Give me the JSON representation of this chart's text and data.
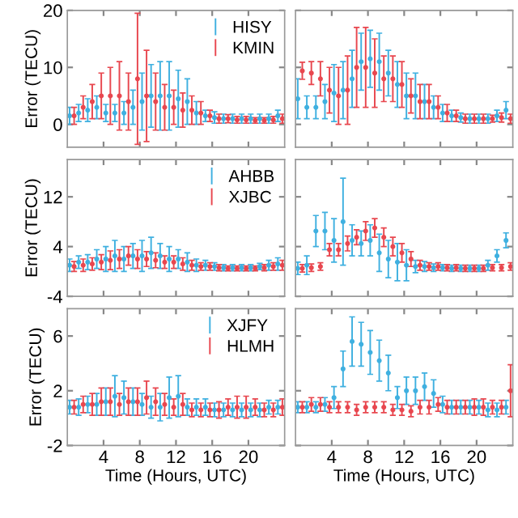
{
  "chart_data": [
    {
      "type": "scatter",
      "ylabel": "Error (TECU)",
      "x": [
        0.25,
        1.25,
        2.25,
        3.25,
        4.25,
        5.25,
        6.25,
        7.25,
        8.25,
        9.25,
        10.25,
        11.25,
        12.25,
        13.25,
        14.25,
        15.25,
        16.25,
        17.25,
        18.25,
        19.25,
        20.25,
        21.25,
        22.25,
        23.25
      ],
      "xlim": [
        0,
        24
      ],
      "xticks": [
        4,
        8,
        12,
        16,
        20
      ],
      "ylim": [
        -4,
        20
      ],
      "yticks": [
        0,
        10,
        20
      ],
      "tick_labels": "y",
      "legend": "top right",
      "marker": "circle",
      "grid": false,
      "series": [
        {
          "name": "HISY",
          "color": "#3fb0e0",
          "values": [
            1.5,
            2,
            2.5,
            3,
            2,
            2,
            2,
            3,
            4,
            5,
            5,
            5,
            4.5,
            4,
            2,
            1.5,
            1.2,
            1,
            1,
            1,
            1,
            1,
            1,
            1.5
          ],
          "errors": [
            1.5,
            1.5,
            2,
            2,
            1.5,
            1.5,
            2,
            3,
            5,
            5.5,
            6,
            6,
            5,
            4,
            2,
            1,
            1,
            0.8,
            0.8,
            0.8,
            0.8,
            0.8,
            0.8,
            1
          ]
        },
        {
          "name": "KMIN",
          "color": "#e8474f",
          "x": [
            0.75,
            1.75,
            2.75,
            3.75,
            4.75,
            5.75,
            6.75,
            7.75,
            8.75,
            9.75,
            10.75,
            11.75,
            12.75,
            13.75,
            14.75,
            15.75,
            16.75,
            17.75,
            18.75,
            19.75,
            20.75,
            21.75,
            22.75,
            23.75
          ],
          "values": [
            1.5,
            3,
            4,
            5,
            5,
            5,
            4,
            8,
            5,
            4,
            3,
            3,
            2.5,
            2.5,
            2,
            1.5,
            1,
            1,
            0.8,
            0.8,
            0.7,
            0.7,
            0.8,
            1
          ],
          "errors": [
            1.5,
            2,
            3,
            4,
            5,
            6,
            5,
            11.5,
            8,
            5,
            4,
            3,
            3,
            2.5,
            2,
            1,
            0.8,
            0.7,
            0.6,
            0.6,
            0.5,
            0.5,
            0.6,
            0.8
          ]
        }
      ]
    },
    {
      "type": "scatter",
      "x": [
        0.25,
        1.25,
        2.25,
        3.25,
        4.25,
        5.25,
        6.25,
        7.25,
        8.25,
        9.25,
        10.25,
        11.25,
        12.25,
        13.25,
        14.25,
        15.25,
        16.25,
        17.25,
        18.25,
        19.25,
        20.25,
        21.25,
        22.25,
        23.25
      ],
      "xlim": [
        0,
        24
      ],
      "xticks": [
        4,
        8,
        12,
        16,
        20
      ],
      "ylim": [
        -4,
        20
      ],
      "yticks": [
        0,
        10,
        20
      ],
      "tick_labels": false,
      "marker": "circle",
      "grid": false,
      "series": [
        {
          "color": "#3fb0e0",
          "values": [
            4.5,
            3,
            3,
            4,
            5.5,
            6,
            8,
            11,
            11.5,
            11,
            9,
            7,
            5,
            5,
            4,
            3,
            2,
            1.5,
            1.2,
            1,
            1,
            1,
            1.5,
            2.5
          ],
          "errors": [
            3.5,
            2,
            2,
            3,
            5,
            5,
            5,
            5,
            5,
            5,
            4,
            4,
            4,
            4,
            3,
            2,
            1.5,
            1,
            0.8,
            0.8,
            0.8,
            0.8,
            1,
            1.5
          ]
        },
        {
          "color": "#e8474f",
          "x": [
            0.75,
            1.75,
            2.75,
            3.75,
            4.75,
            5.75,
            6.75,
            7.75,
            8.75,
            9.75,
            10.75,
            11.75,
            12.75,
            13.75,
            14.75,
            15.75,
            16.75,
            17.75,
            18.75,
            19.75,
            20.75,
            21.75,
            22.75,
            23.75
          ],
          "values": [
            9.4,
            9,
            8,
            6,
            5,
            6,
            10,
            10,
            9,
            8,
            8,
            7,
            5,
            4,
            4,
            3,
            2,
            1.5,
            1,
            1,
            1,
            1,
            1.2,
            1
          ],
          "errors": [
            1.5,
            2,
            3,
            4,
            5,
            6,
            7,
            7,
            6,
            4,
            4,
            4,
            3,
            3,
            3,
            2,
            1.5,
            1,
            0.8,
            0.8,
            0.8,
            0.6,
            0.8,
            0.8
          ]
        }
      ]
    },
    {
      "type": "scatter",
      "ylabel": "Error (TECU)",
      "x": [
        0.25,
        1.25,
        2.25,
        3.25,
        4.25,
        5.25,
        6.25,
        7.25,
        8.25,
        9.25,
        10.25,
        11.25,
        12.25,
        13.25,
        14.25,
        15.25,
        16.25,
        17.25,
        18.25,
        19.25,
        20.25,
        21.25,
        22.25,
        23.25
      ],
      "xlim": [
        0,
        24
      ],
      "xticks": [
        4,
        8,
        12,
        16,
        20
      ],
      "ylim": [
        -4,
        18
      ],
      "yticks": [
        -4,
        4,
        12
      ],
      "tick_labels": "y",
      "legend": "top right",
      "marker": "circle",
      "grid": false,
      "series": [
        {
          "name": "AHBB",
          "color": "#3fb0e0",
          "values": [
            1,
            1.5,
            1.5,
            2,
            2,
            2.5,
            2,
            2.5,
            2.5,
            3,
            2.5,
            2,
            2,
            1.5,
            1,
            1,
            0.8,
            0.6,
            0.6,
            0.6,
            0.6,
            0.8,
            1,
            1.2
          ],
          "errors": [
            1,
            1,
            1.2,
            1.5,
            2,
            2.5,
            2,
            2,
            2.5,
            2.5,
            2,
            2,
            1.5,
            1.5,
            1,
            0.8,
            0.6,
            0.5,
            0.5,
            0.5,
            0.5,
            0.5,
            0.8,
            1
          ]
        },
        {
          "name": "XJBC",
          "color": "#e8474f",
          "x": [
            0.75,
            1.75,
            2.75,
            3.75,
            4.75,
            5.75,
            6.75,
            7.75,
            8.75,
            9.75,
            10.75,
            11.75,
            12.75,
            13.75,
            14.75,
            15.75,
            16.75,
            17.75,
            18.75,
            19.75,
            20.75,
            21.75,
            22.75,
            23.75
          ],
          "values": [
            0.8,
            1,
            1.2,
            1.5,
            1.8,
            2,
            2.5,
            2,
            2,
            1.8,
            1.5,
            1.5,
            1.2,
            1,
            0.8,
            0.8,
            0.6,
            0.5,
            0.5,
            0.5,
            0.5,
            0.6,
            0.8,
            1
          ],
          "errors": [
            0.8,
            1,
            1,
            1.2,
            1.5,
            1.5,
            1.5,
            1.5,
            1.2,
            1.2,
            1,
            1,
            1,
            0.8,
            0.6,
            0.6,
            0.5,
            0.4,
            0.4,
            0.4,
            0.4,
            0.5,
            0.6,
            0.8
          ]
        }
      ]
    },
    {
      "type": "scatter",
      "x": [
        0.25,
        1.25,
        2.25,
        3.25,
        4.25,
        5.25,
        6.25,
        7.25,
        8.25,
        9.25,
        10.25,
        11.25,
        12.25,
        13.25,
        14.25,
        15.25,
        16.25,
        17.25,
        18.25,
        19.25,
        20.25,
        21.25,
        22.25,
        23.25
      ],
      "xlim": [
        0,
        24
      ],
      "xticks": [
        4,
        8,
        12,
        16,
        20
      ],
      "ylim": [
        -4,
        18
      ],
      "yticks": [
        -4,
        4,
        12
      ],
      "tick_labels": false,
      "marker": "circle",
      "grid": false,
      "series": [
        {
          "color": "#3fb0e0",
          "values": [
            0.5,
            1,
            6.5,
            6.5,
            5,
            8,
            5,
            4.5,
            5,
            3,
            2,
            1.5,
            1,
            0.8,
            0.8,
            0.6,
            0.6,
            0.5,
            0.5,
            0.5,
            0.5,
            1,
            2.5,
            5
          ],
          "errors": [
            1,
            1.5,
            2.5,
            3,
            3.5,
            7,
            2.5,
            2,
            2.5,
            3,
            3,
            3,
            2.5,
            1,
            0.8,
            0.6,
            0.5,
            0.5,
            0.5,
            0.5,
            0.5,
            0.8,
            1,
            1.2
          ]
        },
        {
          "color": "#e8474f",
          "x": [
            0.75,
            1.75,
            2.75,
            3.75,
            4.75,
            5.75,
            6.75,
            7.75,
            8.75,
            9.75,
            10.75,
            11.75,
            12.75,
            13.75,
            14.75,
            15.75,
            16.75,
            17.75,
            18.75,
            19.75,
            20.75,
            21.75,
            22.75,
            23.75
          ],
          "values": [
            0.5,
            0.6,
            0.8,
            3.5,
            3.5,
            4.5,
            5.5,
            6.5,
            7,
            5.5,
            4,
            3,
            2,
            1,
            0.8,
            0.8,
            0.6,
            0.6,
            0.5,
            0.5,
            0.5,
            0.6,
            0.6,
            0.8
          ],
          "errors": [
            0.6,
            0.6,
            0.6,
            1,
            1,
            1.2,
            1.2,
            1.5,
            1.5,
            1.5,
            1.5,
            1.5,
            1.2,
            0.8,
            0.6,
            0.6,
            0.5,
            0.5,
            0.5,
            0.5,
            0.5,
            0.5,
            0.5,
            0.6
          ]
        }
      ]
    },
    {
      "type": "scatter",
      "ylabel": "Error (TECU)",
      "xlabel": "Time (Hours, UTC)",
      "x": [
        0.25,
        1.25,
        2.25,
        3.25,
        4.25,
        5.25,
        6.25,
        7.25,
        8.25,
        9.25,
        10.25,
        11.25,
        12.25,
        13.25,
        14.25,
        15.25,
        16.25,
        17.25,
        18.25,
        19.25,
        20.25,
        21.25,
        22.25,
        23.25
      ],
      "xlim": [
        0,
        24
      ],
      "xticks": [
        4,
        8,
        12,
        16,
        20
      ],
      "ylim": [
        -2,
        8
      ],
      "yticks": [
        -2,
        2,
        6
      ],
      "legend": "top right",
      "marker": "circle",
      "grid": false,
      "series": [
        {
          "name": "XJFY",
          "color": "#3fb0e0",
          "values": [
            0.8,
            0.8,
            1,
            1,
            1.2,
            1.6,
            1.5,
            1.2,
            1,
            0.8,
            0.8,
            1.5,
            1.6,
            0.8,
            0.8,
            0.8,
            0.6,
            0.6,
            0.6,
            0.6,
            0.6,
            0.6,
            0.8,
            0.8
          ],
          "errors": [
            0.5,
            0.6,
            0.6,
            0.8,
            1,
            1.5,
            1.2,
            1,
            0.8,
            0.8,
            1,
            1.5,
            1.5,
            0.6,
            0.6,
            0.6,
            0.5,
            0.5,
            0.5,
            0.5,
            0.5,
            0.5,
            0.5,
            0.5
          ]
        },
        {
          "name": "HLMH",
          "color": "#e8474f",
          "x": [
            0.75,
            1.75,
            2.75,
            3.75,
            4.75,
            5.75,
            6.75,
            7.75,
            8.75,
            9.75,
            10.75,
            11.75,
            12.75,
            13.75,
            14.75,
            15.75,
            16.75,
            17.75,
            18.75,
            19.75,
            20.75,
            21.75,
            22.75,
            23.75
          ],
          "values": [
            0.8,
            1,
            1,
            1.2,
            1.2,
            1,
            1.2,
            1.2,
            1.5,
            1.2,
            1,
            0.8,
            1,
            0.6,
            0.6,
            0.6,
            0.6,
            0.8,
            0.8,
            0.8,
            0.8,
            0.6,
            0.6,
            0.8
          ],
          "errors": [
            0.5,
            0.6,
            0.8,
            1,
            1,
            0.8,
            1,
            1,
            1.2,
            1,
            0.8,
            0.6,
            0.8,
            0.5,
            0.5,
            0.5,
            0.6,
            0.6,
            0.8,
            0.8,
            0.6,
            0.5,
            0.5,
            0.6
          ]
        }
      ]
    },
    {
      "type": "scatter",
      "xlabel": "Time (Hours, UTC)",
      "x": [
        0.25,
        1.25,
        2.25,
        3.25,
        4.25,
        5.25,
        6.25,
        7.25,
        8.25,
        9.25,
        10.25,
        11.25,
        12.25,
        13.25,
        14.25,
        15.25,
        16.25,
        17.25,
        18.25,
        19.25,
        20.25,
        21.25,
        22.25,
        23.25
      ],
      "xlim": [
        0,
        24
      ],
      "xticks": [
        4,
        8,
        12,
        16,
        20
      ],
      "ylim": [
        -2,
        8
      ],
      "yticks": [
        -2,
        2,
        6
      ],
      "tick_labels": "x",
      "marker": "circle",
      "grid": false,
      "series": [
        {
          "color": "#3fb0e0",
          "values": [
            0.8,
            0.8,
            0.8,
            1,
            1.5,
            3.6,
            5.6,
            5.4,
            4.8,
            4.2,
            3.3,
            1.5,
            2,
            2,
            2.3,
            1.8,
            1,
            0.8,
            0.8,
            0.8,
            0.8,
            0.6,
            0.6,
            0.8
          ],
          "errors": [
            0.4,
            0.4,
            0.4,
            0.5,
            0.8,
            1.3,
            1.8,
            1.6,
            1.6,
            1.5,
            1.3,
            0.8,
            1,
            1,
            1,
            1,
            0.6,
            0.5,
            0.5,
            0.5,
            0.5,
            0.5,
            0.5,
            0.5
          ]
        },
        {
          "color": "#e8474f",
          "x": [
            0.75,
            1.75,
            2.75,
            3.75,
            4.75,
            5.75,
            6.75,
            7.75,
            8.75,
            9.75,
            10.75,
            11.75,
            12.75,
            13.75,
            14.75,
            15.75,
            16.75,
            17.75,
            18.75,
            19.75,
            20.75,
            21.75,
            22.75,
            23.75
          ],
          "values": [
            0.8,
            1,
            1,
            0.8,
            0.8,
            0.8,
            0.6,
            0.8,
            0.8,
            0.8,
            0.6,
            0.6,
            0.5,
            0.8,
            0.8,
            1,
            0.8,
            0.8,
            0.8,
            0.8,
            0.8,
            0.8,
            0.8,
            2
          ],
          "errors": [
            0.4,
            0.5,
            0.5,
            0.4,
            0.4,
            0.4,
            0.4,
            0.4,
            0.4,
            0.4,
            0.4,
            0.4,
            0.4,
            0.5,
            0.5,
            0.5,
            0.5,
            0.5,
            0.5,
            0.6,
            0.6,
            0.5,
            0.5,
            1.9
          ]
        }
      ]
    }
  ]
}
